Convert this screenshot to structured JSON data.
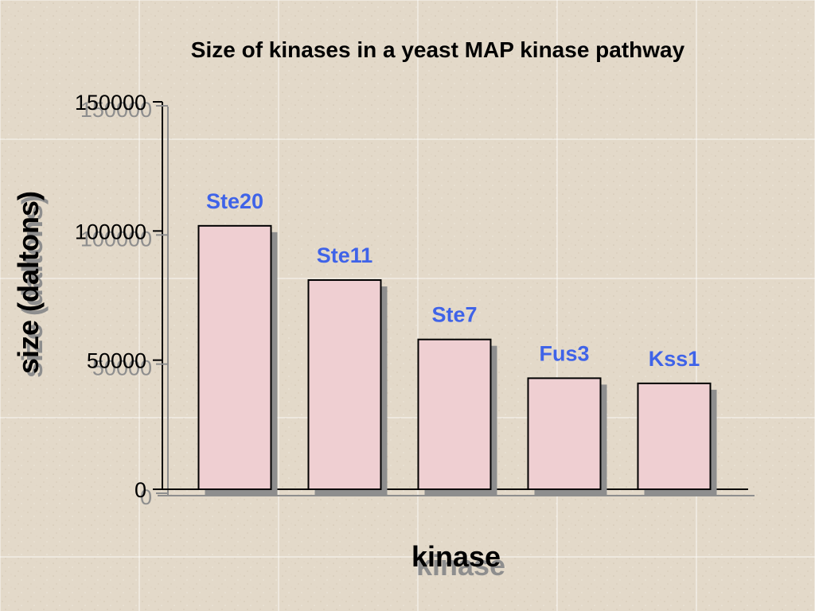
{
  "chart_data": {
    "type": "bar",
    "title": "Size of kinases in a yeast MAP kinase pathway",
    "xlabel": "kinase",
    "ylabel": "size (daltons)",
    "categories": [
      "Ste20",
      "Ste11",
      "Ste7",
      "Fus3",
      "Kss1"
    ],
    "values": [
      102000,
      81000,
      58000,
      43000,
      41000
    ],
    "ylim": [
      0,
      150000
    ],
    "yticks": [
      0,
      50000,
      100000,
      150000
    ],
    "ytick_labels": [
      "0",
      "50000",
      "100000",
      "150000"
    ],
    "legend": "none",
    "grid": true,
    "colors": {
      "background": "#e3d9c9",
      "bar_fill": "#efcfd2",
      "bar_stroke": "#000000",
      "bar_shadow": "#8e8e8e",
      "bar_label": "#3f63e8",
      "grid": "#ffffff"
    }
  }
}
